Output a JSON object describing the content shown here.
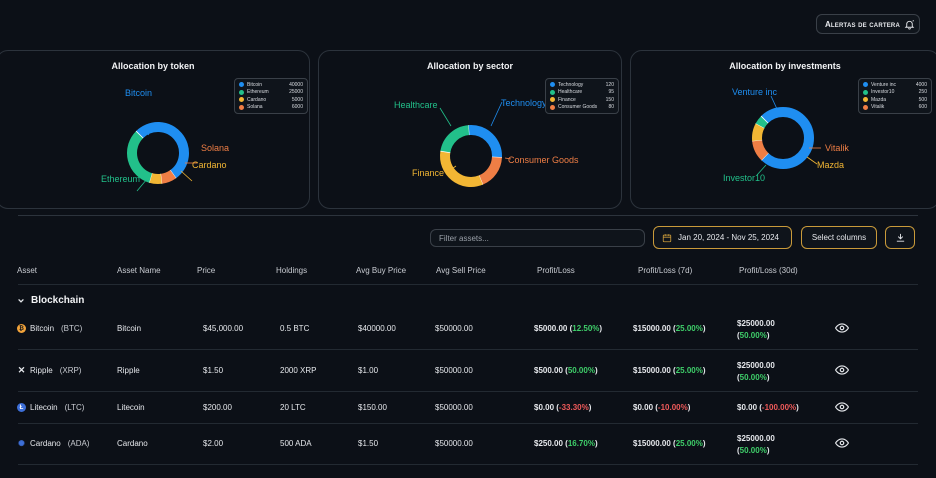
{
  "header": {
    "alerts_label": "Alertas de cartera"
  },
  "cards": {
    "token": {
      "title": "Allocation by token",
      "legend": [
        {
          "name": "Bitcoin",
          "value": "40000"
        },
        {
          "name": "Ethereum",
          "value": "25000"
        },
        {
          "name": "Cardano",
          "value": "5000"
        },
        {
          "name": "Solana",
          "value": "6000"
        }
      ],
      "labels": {
        "bitcoin": "Bitcoin",
        "solana": "Solana",
        "cardano": "Cardano",
        "ethereum": "Ethereum"
      }
    },
    "sector": {
      "title": "Allocation by sector",
      "legend": [
        {
          "name": "Technology",
          "value": "120"
        },
        {
          "name": "Healthcare",
          "value": "95"
        },
        {
          "name": "Finance",
          "value": "150"
        },
        {
          "name": "Consumer Goods",
          "value": "80"
        }
      ],
      "labels": {
        "healthcare": "Healthcare",
        "technology": "Technology",
        "consumer": "Consumer Goods",
        "finance": "Finance"
      }
    },
    "investments": {
      "title": "Allocation by investments",
      "legend": [
        {
          "name": "Venture inc",
          "value": "4000"
        },
        {
          "name": "Investor10",
          "value": "250"
        },
        {
          "name": "Mazda",
          "value": "500"
        },
        {
          "name": "Vitalik",
          "value": "600"
        }
      ],
      "labels": {
        "venture": "Venture inc",
        "vitalik": "Vitalik",
        "mazda": "Mazda",
        "investor": "Investor10"
      }
    }
  },
  "colors": {
    "blue": "#1f8ef1",
    "green": "#22c08a",
    "orange": "#ef7e45",
    "yellow": "#f2b634",
    "accent": "#c99a3a"
  },
  "toolbar": {
    "filter_placeholder": "Filter assets...",
    "date_range": "Jan 20, 2024 - Nov 25, 2024",
    "select_columns": "Select columns"
  },
  "table": {
    "headers": [
      "Asset",
      "Asset Name",
      "Price",
      "Holdings",
      "Avg Buy Price",
      "Avg Sell Price",
      "Profit/Loss",
      "Profit/Loss (7d)",
      "Profit/Loss (30d)"
    ],
    "group": "Blockchain",
    "rows": [
      {
        "asset": "Bitcoin",
        "ticker": "(BTC)",
        "icon": "bitcoin-icon",
        "name": "Bitcoin",
        "price": "$45,000.00",
        "holdings": "0.5 BTC",
        "avg_buy": "$40000.00",
        "avg_sell": "$50000.00",
        "pl": "$5000.00",
        "pl_pct": "12.50%",
        "pl7": "$15000.00",
        "pl7_pct": "25.00%",
        "pl30": "$25000.00",
        "pl30_pct": "50.00%"
      },
      {
        "asset": "Ripple",
        "ticker": "(XRP)",
        "icon": "ripple-icon",
        "name": "Ripple",
        "price": "$1.50",
        "holdings": "2000 XRP",
        "avg_buy": "$1.00",
        "avg_sell": "$50000.00",
        "pl": "$500.00",
        "pl_pct": "50.00%",
        "pl7": "$15000.00",
        "pl7_pct": "25.00%",
        "pl30": "$25000.00",
        "pl30_pct": "50.00%"
      },
      {
        "asset": "Litecoin",
        "ticker": "(LTC)",
        "icon": "litecoin-icon",
        "name": "Litecoin",
        "price": "$200.00",
        "holdings": "20 LTC",
        "avg_buy": "$150.00",
        "avg_sell": "$50000.00",
        "pl": "$0.00",
        "pl_pct": "-33.30%",
        "pl7": "$0.00",
        "pl7_pct": "-10.00%",
        "pl30": "$0.00",
        "pl30_pct": "-100.00%"
      },
      {
        "asset": "Cardano",
        "ticker": "(ADA)",
        "icon": "cardano-icon",
        "name": "Cardano",
        "price": "$2.00",
        "holdings": "500 ADA",
        "avg_buy": "$1.50",
        "avg_sell": "$50000.00",
        "pl": "$250.00",
        "pl_pct": "16.70%",
        "pl7": "$15000.00",
        "pl7_pct": "25.00%",
        "pl30": "$25000.00",
        "pl30_pct": "50.00%"
      }
    ]
  },
  "chart_data": [
    {
      "type": "pie",
      "title": "Allocation by token",
      "categories": [
        "Bitcoin",
        "Ethereum",
        "Cardano",
        "Solana"
      ],
      "values": [
        40000,
        25000,
        5000,
        6000
      ]
    },
    {
      "type": "pie",
      "title": "Allocation by sector",
      "categories": [
        "Technology",
        "Healthcare",
        "Finance",
        "Consumer Goods"
      ],
      "values": [
        120,
        95,
        150,
        80
      ]
    },
    {
      "type": "pie",
      "title": "Allocation by investments",
      "categories": [
        "Venture inc",
        "Investor10",
        "Mazda",
        "Vitalik"
      ],
      "values": [
        4000,
        250,
        500,
        600
      ]
    }
  ]
}
